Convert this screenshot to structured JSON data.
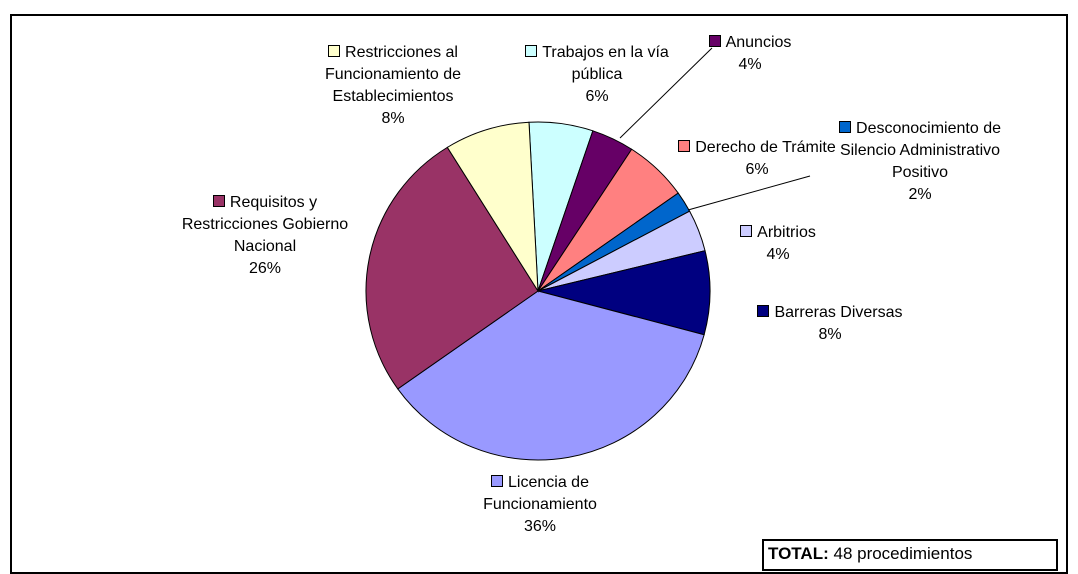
{
  "chart_data": {
    "type": "pie",
    "categories": [
      "Trabajos en la vía pública",
      "Anuncios",
      "Derecho de Trámite",
      "Desconocimiento de Silencio Administrativo Positivo",
      "Arbitrios",
      "Barreras Diversas",
      "Licencia de Funcionamiento",
      "Requisitos y Restricciones Gobierno Nacional",
      "Restricciones al Funcionamiento de Establecimientos"
    ],
    "values": [
      6,
      4,
      6,
      2,
      4,
      8,
      36,
      26,
      8
    ],
    "value_labels": [
      "6%",
      "4%",
      "6%",
      "2%",
      "4%",
      "8%",
      "36%",
      "26%",
      "8%"
    ],
    "colors": [
      "#ccffff",
      "#660066",
      "#ff8080",
      "#0066cc",
      "#ccccff",
      "#000080",
      "#9999ff",
      "#993366",
      "#ffffcc"
    ],
    "total_label": "TOTAL:",
    "total_text": "48 procedimientos"
  }
}
